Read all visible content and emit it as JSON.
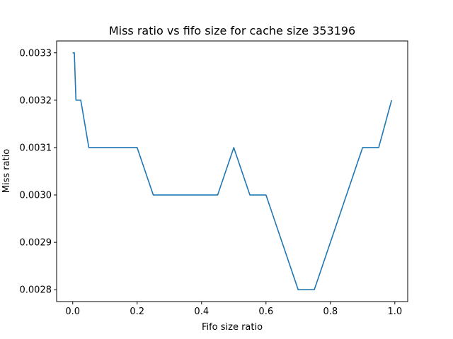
{
  "chart_data": {
    "type": "line",
    "title": "Miss ratio vs fifo size for cache size 353196",
    "xlabel": "Fifo size ratio",
    "ylabel": "Miss ratio",
    "xlim": [
      -0.05,
      1.04
    ],
    "ylim": [
      0.002775,
      0.003325
    ],
    "xticks": [
      0.0,
      0.2,
      0.4,
      0.6,
      0.8,
      1.0
    ],
    "xtick_labels": [
      "0.0",
      "0.2",
      "0.4",
      "0.6",
      "0.8",
      "1.0"
    ],
    "yticks": [
      0.0028,
      0.0029,
      0.003,
      0.0031,
      0.0032,
      0.0033
    ],
    "ytick_labels": [
      "0.0028",
      "0.0029",
      "0.0030",
      "0.0031",
      "0.0032",
      "0.0033"
    ],
    "grid": false,
    "series": [
      {
        "color": "#1f77b4",
        "x": [
          0.0,
          0.005,
          0.01,
          0.025,
          0.05,
          0.1,
          0.15,
          0.2,
          0.25,
          0.3,
          0.35,
          0.4,
          0.45,
          0.5,
          0.55,
          0.6,
          0.65,
          0.7,
          0.75,
          0.8,
          0.85,
          0.9,
          0.95,
          0.99
        ],
        "y": [
          0.0033,
          0.0033,
          0.0032,
          0.0032,
          0.0031,
          0.0031,
          0.0031,
          0.0031,
          0.003,
          0.003,
          0.003,
          0.003,
          0.003,
          0.0031,
          0.003,
          0.003,
          0.0029,
          0.0028,
          0.0028,
          0.0029,
          0.003,
          0.0031,
          0.0031,
          0.0032
        ]
      }
    ]
  }
}
